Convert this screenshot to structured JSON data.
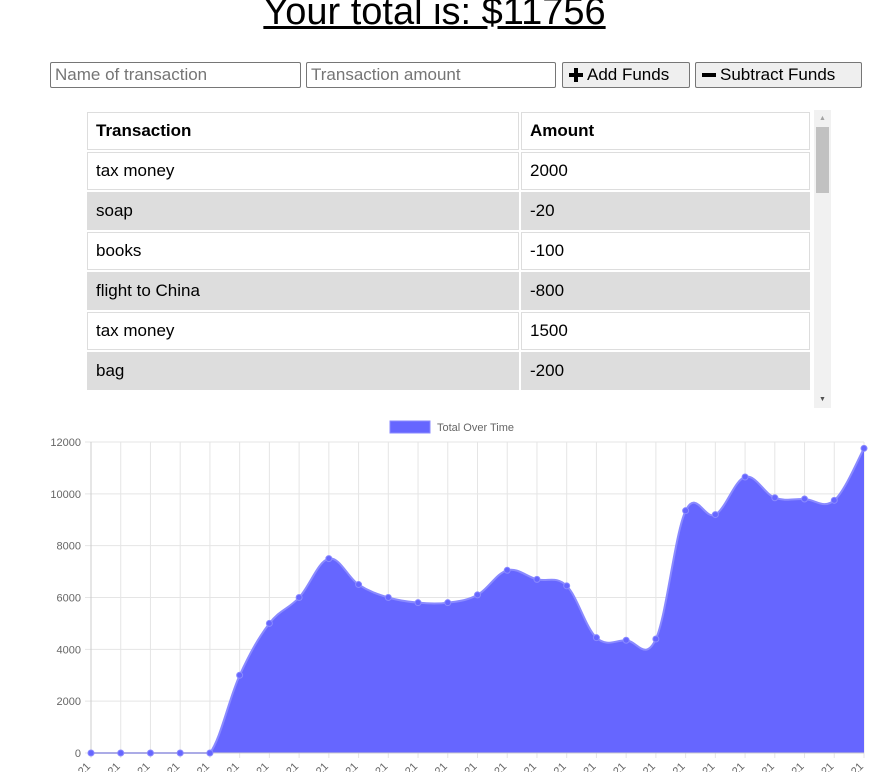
{
  "header": {
    "total_label": "Your total is: $11756"
  },
  "form": {
    "name_placeholder": "Name of transaction",
    "amount_placeholder": "Transaction amount",
    "add_label": "Add Funds",
    "subtract_label": "Subtract Funds"
  },
  "table": {
    "headers": [
      "Transaction",
      "Amount"
    ],
    "rows": [
      {
        "name": "tax money",
        "amount": "2000"
      },
      {
        "name": "soap",
        "amount": "-20"
      },
      {
        "name": "books",
        "amount": "-100"
      },
      {
        "name": "flight to China",
        "amount": "-800"
      },
      {
        "name": "tax money",
        "amount": "1500"
      },
      {
        "name": "bag",
        "amount": "-200"
      }
    ]
  },
  "colors": {
    "series_fill": "#6666ff",
    "series_line": "#8a8aff",
    "grid": "#e5e5e5"
  },
  "chart_data": {
    "type": "area",
    "series": [
      {
        "name": "Total Over Time",
        "values": [
          0,
          0,
          0,
          0,
          0,
          3000,
          5000,
          6000,
          7500,
          6500,
          6000,
          5800,
          5800,
          6100,
          7050,
          6700,
          6450,
          4450,
          4350,
          4400,
          9350,
          9200,
          10650,
          9850,
          9800,
          9750,
          11756
        ]
      }
    ],
    "ylim": [
      0,
      12000
    ],
    "yticks": [
      0,
      2000,
      4000,
      6000,
      8000,
      10000,
      12000
    ],
    "xtick_label": "...21",
    "legend": "top-center",
    "grid": true
  }
}
